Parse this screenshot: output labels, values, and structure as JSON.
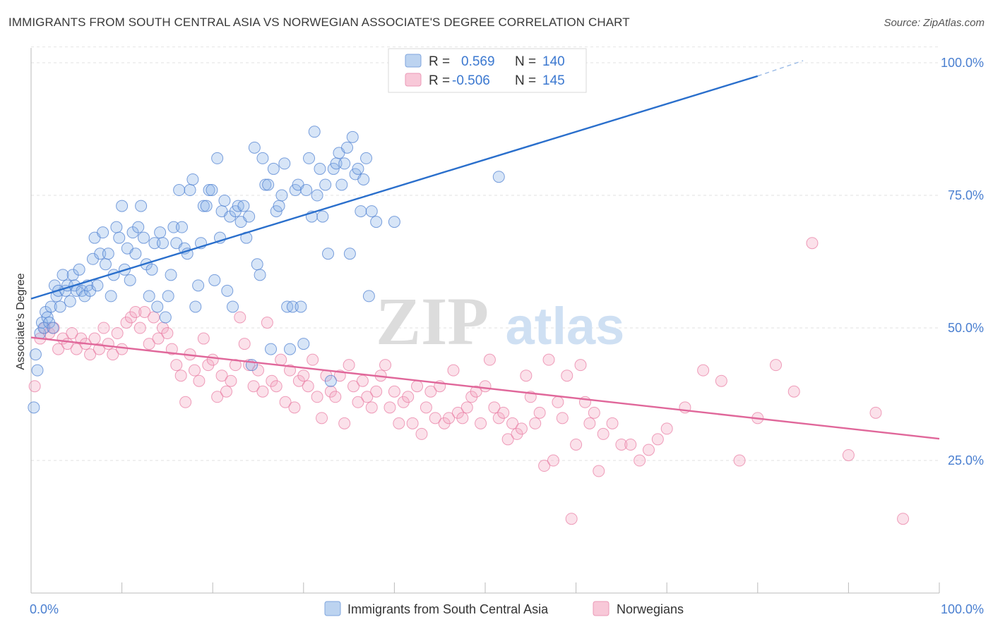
{
  "title": "IMMIGRANTS FROM SOUTH CENTRAL ASIA VS NORWEGIAN ASSOCIATE'S DEGREE CORRELATION CHART",
  "source": "Source: ZipAtlas.com",
  "watermark": {
    "zip": "ZIP",
    "atlas": "atlas"
  },
  "legend_box": {
    "rows": [
      {
        "r_label": "R =",
        "r_value": "0.569",
        "n_label": "N =",
        "n_value": "140"
      },
      {
        "r_label": "R =",
        "r_value": "-0.506",
        "n_label": "N =",
        "n_value": "145"
      }
    ]
  },
  "chart_data": {
    "type": "scatter",
    "title": "IMMIGRANTS FROM SOUTH CENTRAL ASIA VS NORWEGIAN ASSOCIATE'S DEGREE CORRELATION CHART",
    "xlabel": "",
    "ylabel": "Associate's Degree",
    "xlim": [
      0,
      100
    ],
    "ylim": [
      0,
      102
    ],
    "x_tick_labels": [
      "0.0%",
      "100.0%"
    ],
    "y_ticks": [
      25,
      50,
      75,
      100
    ],
    "y_tick_labels": [
      "25.0%",
      "50.0%",
      "75.0%",
      "100.0%"
    ],
    "grid": true,
    "legend_position": "bottom",
    "colors": {
      "blue": "#5b8fd6",
      "blue_line": "#2a6fcc",
      "pink": "#ec8fb0",
      "pink_line": "#e0679a",
      "axis_text": "#4a7fd0"
    },
    "series": [
      {
        "name": "Immigrants from South Central Asia",
        "color": "#5b8fd6",
        "r": 0.569,
        "n": 140,
        "trend": {
          "x0": 0,
          "y0": 55.5,
          "x1": 80,
          "y1": 97.5,
          "dash_to_x": 85,
          "dash_to_y": 100.4
        },
        "points": [
          [
            0.3,
            35
          ],
          [
            0.5,
            45
          ],
          [
            0.7,
            42
          ],
          [
            1,
            49
          ],
          [
            1.2,
            51
          ],
          [
            1.4,
            50
          ],
          [
            1.6,
            53
          ],
          [
            1.8,
            52
          ],
          [
            2,
            51
          ],
          [
            2.2,
            54
          ],
          [
            2.4,
            50
          ],
          [
            2.6,
            58
          ],
          [
            2.8,
            56
          ],
          [
            3,
            57
          ],
          [
            3.2,
            54
          ],
          [
            3.5,
            60
          ],
          [
            3.8,
            57
          ],
          [
            4,
            58
          ],
          [
            4.3,
            55
          ],
          [
            4.6,
            60
          ],
          [
            4.8,
            58
          ],
          [
            5,
            57
          ],
          [
            5.3,
            61
          ],
          [
            5.6,
            57
          ],
          [
            5.9,
            56
          ],
          [
            6.2,
            58
          ],
          [
            6.5,
            57
          ],
          [
            6.8,
            63
          ],
          [
            7,
            67
          ],
          [
            7.3,
            58
          ],
          [
            7.6,
            64
          ],
          [
            7.9,
            68
          ],
          [
            8.2,
            62
          ],
          [
            8.5,
            64
          ],
          [
            8.8,
            56
          ],
          [
            9.1,
            60
          ],
          [
            9.4,
            69
          ],
          [
            9.7,
            67
          ],
          [
            10,
            73
          ],
          [
            10.3,
            61
          ],
          [
            10.6,
            65
          ],
          [
            10.9,
            59
          ],
          [
            11.2,
            68
          ],
          [
            11.5,
            64
          ],
          [
            11.8,
            69
          ],
          [
            12.1,
            73
          ],
          [
            12.4,
            67
          ],
          [
            12.7,
            62
          ],
          [
            13,
            56
          ],
          [
            13.3,
            61
          ],
          [
            13.6,
            66
          ],
          [
            13.9,
            54
          ],
          [
            14.2,
            68
          ],
          [
            14.5,
            66
          ],
          [
            14.8,
            52
          ],
          [
            15.1,
            56
          ],
          [
            15.4,
            60
          ],
          [
            15.7,
            69
          ],
          [
            16,
            66
          ],
          [
            16.3,
            76
          ],
          [
            16.6,
            69
          ],
          [
            16.9,
            65
          ],
          [
            17.2,
            64
          ],
          [
            17.5,
            76
          ],
          [
            17.8,
            78
          ],
          [
            18.1,
            54
          ],
          [
            18.4,
            58
          ],
          [
            18.7,
            66
          ],
          [
            19,
            73
          ],
          [
            19.3,
            73
          ],
          [
            19.6,
            76
          ],
          [
            19.9,
            76
          ],
          [
            20.2,
            59
          ],
          [
            20.5,
            82
          ],
          [
            20.8,
            67
          ],
          [
            21,
            72
          ],
          [
            21.3,
            74
          ],
          [
            21.6,
            57
          ],
          [
            21.9,
            71
          ],
          [
            22.2,
            54
          ],
          [
            22.5,
            72
          ],
          [
            22.8,
            73
          ],
          [
            23.1,
            70
          ],
          [
            23.4,
            73
          ],
          [
            23.7,
            67
          ],
          [
            24,
            71
          ],
          [
            24.3,
            43
          ],
          [
            24.6,
            84
          ],
          [
            24.9,
            62
          ],
          [
            25.2,
            60
          ],
          [
            25.5,
            82
          ],
          [
            25.8,
            77
          ],
          [
            26.1,
            77
          ],
          [
            26.4,
            46
          ],
          [
            26.7,
            80
          ],
          [
            27,
            72
          ],
          [
            27.3,
            73
          ],
          [
            27.6,
            75
          ],
          [
            27.9,
            81
          ],
          [
            28.2,
            54
          ],
          [
            28.5,
            46
          ],
          [
            28.8,
            54
          ],
          [
            29.1,
            76
          ],
          [
            29.4,
            77
          ],
          [
            29.7,
            54
          ],
          [
            30,
            47
          ],
          [
            30.3,
            76
          ],
          [
            30.6,
            82
          ],
          [
            30.9,
            71
          ],
          [
            31.2,
            87
          ],
          [
            31.5,
            75
          ],
          [
            31.8,
            80
          ],
          [
            32.1,
            71
          ],
          [
            32.4,
            77
          ],
          [
            32.7,
            64
          ],
          [
            33,
            40
          ],
          [
            33.3,
            80
          ],
          [
            33.6,
            81
          ],
          [
            33.9,
            83
          ],
          [
            34.2,
            77
          ],
          [
            34.5,
            81
          ],
          [
            34.8,
            84
          ],
          [
            35.1,
            64
          ],
          [
            35.4,
            86
          ],
          [
            35.7,
            79
          ],
          [
            36,
            80
          ],
          [
            36.3,
            72
          ],
          [
            36.6,
            78
          ],
          [
            36.9,
            82
          ],
          [
            37.2,
            56
          ],
          [
            37.5,
            72
          ],
          [
            38,
            70
          ],
          [
            40,
            70
          ],
          [
            51.5,
            78.5
          ]
        ]
      },
      {
        "name": "Norwegians",
        "color": "#ec8fb0",
        "r": -0.506,
        "n": 145,
        "trend": {
          "x0": 0,
          "y0": 48.2,
          "x1": 100,
          "y1": 29.1
        },
        "points": [
          [
            0.4,
            39
          ],
          [
            1,
            48
          ],
          [
            1.5,
            50
          ],
          [
            2,
            49
          ],
          [
            2.5,
            50
          ],
          [
            3,
            46
          ],
          [
            3.5,
            48
          ],
          [
            4,
            47
          ],
          [
            4.5,
            49
          ],
          [
            5,
            46
          ],
          [
            5.5,
            48
          ],
          [
            6,
            47
          ],
          [
            6.5,
            45
          ],
          [
            7,
            48
          ],
          [
            7.5,
            46
          ],
          [
            8,
            50
          ],
          [
            8.5,
            47
          ],
          [
            9,
            45
          ],
          [
            9.5,
            49
          ],
          [
            10,
            46
          ],
          [
            10.5,
            51
          ],
          [
            11,
            52
          ],
          [
            11.5,
            53
          ],
          [
            12,
            50
          ],
          [
            12.5,
            53
          ],
          [
            13,
            47
          ],
          [
            13.5,
            52
          ],
          [
            14,
            48
          ],
          [
            14.5,
            50
          ],
          [
            15,
            49
          ],
          [
            15.5,
            46
          ],
          [
            16,
            43
          ],
          [
            16.5,
            41
          ],
          [
            17,
            36
          ],
          [
            17.5,
            45
          ],
          [
            18,
            42
          ],
          [
            18.5,
            40
          ],
          [
            19,
            48
          ],
          [
            19.5,
            43
          ],
          [
            20,
            44
          ],
          [
            20.5,
            37
          ],
          [
            21,
            41
          ],
          [
            21.5,
            38
          ],
          [
            22,
            40
          ],
          [
            22.5,
            43
          ],
          [
            23,
            52
          ],
          [
            23.5,
            47
          ],
          [
            24,
            43
          ],
          [
            24.5,
            39
          ],
          [
            25,
            42
          ],
          [
            25.5,
            38
          ],
          [
            26,
            51
          ],
          [
            26.5,
            40
          ],
          [
            27,
            39
          ],
          [
            27.5,
            44
          ],
          [
            28,
            36
          ],
          [
            28.5,
            42
          ],
          [
            29,
            35
          ],
          [
            29.5,
            40
          ],
          [
            30,
            41
          ],
          [
            30.5,
            39
          ],
          [
            31,
            44
          ],
          [
            31.5,
            37
          ],
          [
            32,
            33
          ],
          [
            32.5,
            41
          ],
          [
            33,
            38
          ],
          [
            33.5,
            37
          ],
          [
            34,
            41
          ],
          [
            34.5,
            32
          ],
          [
            35,
            43
          ],
          [
            35.5,
            39
          ],
          [
            36,
            36
          ],
          [
            36.5,
            40
          ],
          [
            37,
            37
          ],
          [
            37.5,
            35
          ],
          [
            38,
            38
          ],
          [
            38.5,
            41
          ],
          [
            39,
            43
          ],
          [
            39.5,
            35
          ],
          [
            40,
            38
          ],
          [
            40.5,
            32
          ],
          [
            41,
            36
          ],
          [
            41.5,
            37
          ],
          [
            42,
            32
          ],
          [
            42.5,
            39
          ],
          [
            43,
            30
          ],
          [
            43.5,
            35
          ],
          [
            44,
            38
          ],
          [
            44.5,
            33
          ],
          [
            45,
            39
          ],
          [
            45.5,
            32
          ],
          [
            46,
            33
          ],
          [
            46.5,
            42
          ],
          [
            47,
            34
          ],
          [
            47.5,
            33
          ],
          [
            48,
            35
          ],
          [
            48.5,
            37
          ],
          [
            49,
            38
          ],
          [
            49.5,
            32
          ],
          [
            50,
            39
          ],
          [
            50.5,
            44
          ],
          [
            51,
            35
          ],
          [
            51.5,
            33
          ],
          [
            52,
            34
          ],
          [
            52.5,
            29
          ],
          [
            53,
            32
          ],
          [
            53.5,
            30
          ],
          [
            54,
            31
          ],
          [
            54.5,
            41
          ],
          [
            55,
            37
          ],
          [
            55.5,
            32
          ],
          [
            56,
            34
          ],
          [
            56.5,
            24
          ],
          [
            57,
            44
          ],
          [
            57.5,
            25
          ],
          [
            58,
            36
          ],
          [
            58.5,
            33
          ],
          [
            59,
            41
          ],
          [
            59.5,
            14
          ],
          [
            60,
            28
          ],
          [
            60.5,
            43
          ],
          [
            61,
            36
          ],
          [
            61.5,
            32
          ],
          [
            62,
            34
          ],
          [
            62.5,
            23
          ],
          [
            63,
            30
          ],
          [
            64,
            32
          ],
          [
            65,
            28
          ],
          [
            66,
            28
          ],
          [
            67,
            25
          ],
          [
            68,
            27
          ],
          [
            69,
            29
          ],
          [
            70,
            31
          ],
          [
            72,
            35
          ],
          [
            74,
            42
          ],
          [
            76,
            40
          ],
          [
            78,
            25
          ],
          [
            80,
            33
          ],
          [
            82,
            43
          ],
          [
            84,
            38
          ],
          [
            86,
            66
          ],
          [
            90,
            26
          ],
          [
            93,
            34
          ],
          [
            96,
            14
          ]
        ]
      }
    ]
  },
  "bottom_legend": {
    "items": [
      {
        "label": "Immigrants from South Central Asia",
        "color": "#5b8fd6"
      },
      {
        "label": "Norwegians",
        "color": "#ec8fb0"
      }
    ]
  }
}
